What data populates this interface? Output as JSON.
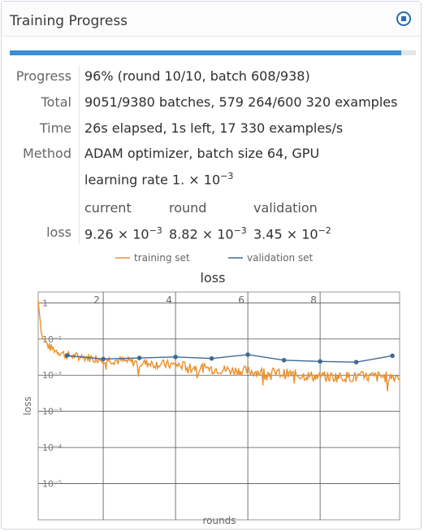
{
  "panel": {
    "title": "Training Progress",
    "progress_fraction": 0.964
  },
  "info": {
    "progress_label": "Progress",
    "progress_value": "96% (round 10/10, batch 608/938)",
    "total_label": "Total",
    "total_value": "9051/9380 batches, 579 264/600 320 examples",
    "time_label": "Time",
    "time_value": "26s elapsed, 1s left, 17 330 examples/s",
    "method_label": "Method",
    "method_value": "ADAM optimizer, batch size 64, GPU",
    "lr_prefix": "learning rate 1. × 10",
    "lr_exp": "−3"
  },
  "loss_table": {
    "col_current": "current",
    "col_round": "round",
    "col_validation": "validation",
    "row_label": "loss",
    "current_mant": "9.26 × 10",
    "current_exp": "−3",
    "round_mant": "8.82 × 10",
    "round_exp": "−3",
    "validation_mant": "3.45 × 10",
    "validation_exp": "−2"
  },
  "legend": {
    "training": "training set",
    "validation": "validation set"
  },
  "colors": {
    "training": "#e8912d",
    "validation": "#3f6a96",
    "accent": "#3b8ed6"
  },
  "chart_data": {
    "type": "line",
    "title": "loss",
    "xlabel": "rounds",
    "ylabel": "loss",
    "xlim": [
      0.2,
      10.2
    ],
    "ylog": true,
    "ylim_exp": [
      -6,
      0.3
    ],
    "x_ticks": [
      "2",
      "4",
      "6",
      "8"
    ],
    "y_ticks": [
      "1",
      "10⁻¹",
      "10⁻²",
      "10⁻³",
      "10⁻⁴",
      "10⁻⁵"
    ],
    "grid": true,
    "legend": "top",
    "series": [
      {
        "name": "validation set",
        "x": [
          1,
          2,
          3,
          4,
          5,
          6,
          7,
          8,
          9,
          10
        ],
        "y": [
          0.035,
          0.028,
          0.03,
          0.032,
          0.029,
          0.037,
          0.026,
          0.024,
          0.023,
          0.0345
        ]
      },
      {
        "name": "training set",
        "x": [
          0.2,
          0.3,
          0.5,
          1.0,
          2.0,
          3.0,
          4.0,
          5.0,
          6.0,
          7.0,
          8.0,
          9.0,
          10.0,
          10.2
        ],
        "y": [
          1.2,
          0.12,
          0.06,
          0.035,
          0.028,
          0.022,
          0.019,
          0.015,
          0.013,
          0.011,
          0.009,
          0.009,
          0.009,
          0.00926
        ]
      }
    ]
  }
}
